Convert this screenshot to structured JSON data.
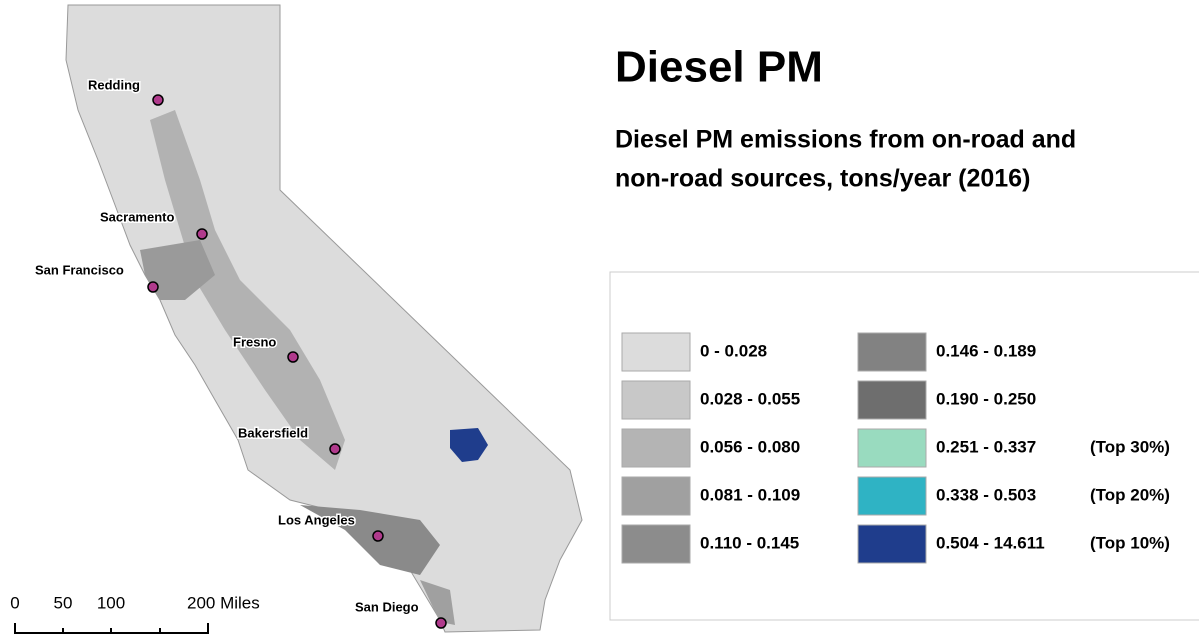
{
  "title": "Diesel PM",
  "subtitle": [
    "Diesel PM emissions from on-road and",
    "non-road sources, tons/year (2016)"
  ],
  "cities": [
    "Redding",
    "Sacramento",
    "San Francisco",
    "Fresno",
    "Bakersfield",
    "Los Angeles",
    "San Diego"
  ],
  "legend": [
    {
      "label": "0 - 0.028",
      "color": "#dcdcdc"
    },
    {
      "label": "0.028 - 0.055",
      "color": "#c8c8c8"
    },
    {
      "label": "0.056 - 0.080",
      "color": "#b4b4b4"
    },
    {
      "label": "0.081 - 0.109",
      "color": "#a0a0a0"
    },
    {
      "label": "0.110 - 0.145",
      "color": "#8c8c8c"
    },
    {
      "label": "0.146 - 0.189",
      "color": "#828282"
    },
    {
      "label": "0.190 - 0.250",
      "color": "#6e6e6e"
    },
    {
      "label": "0.251 - 0.337",
      "color": "#99dbbf",
      "note": "(Top 30%)"
    },
    {
      "label": "0.338 - 0.503",
      "color": "#2fb3c4",
      "note": "(Top 20%)"
    },
    {
      "label": "0.504 - 14.611",
      "color": "#1f3d8c",
      "note": "(Top 10%)"
    }
  ],
  "scale_bar": [
    "0",
    "50",
    "100",
    "200 Miles"
  ]
}
